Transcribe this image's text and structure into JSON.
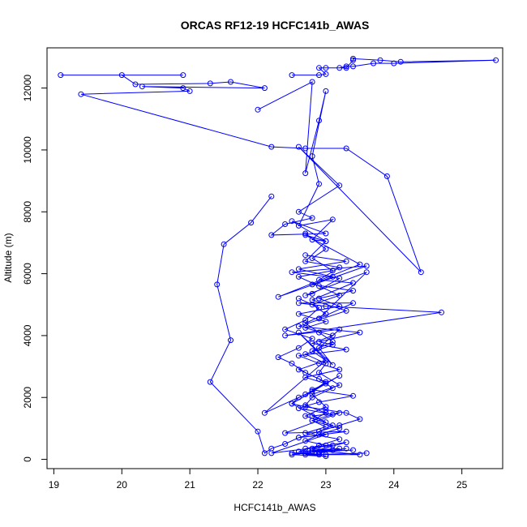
{
  "chart_data": {
    "type": "line",
    "title": "ORCAS RF12-19 HCFC141b_AWAS",
    "xlabel": "HCFC141b_AWAS",
    "ylabel": "Altitude (m)",
    "xlim": [
      18.9,
      25.6
    ],
    "ylim": [
      -300,
      13300
    ],
    "x_ticks": [
      19,
      20,
      21,
      22,
      23,
      24,
      25
    ],
    "y_ticks": [
      0,
      2000,
      4000,
      6000,
      8000,
      10000,
      12000
    ],
    "grid": false,
    "legend": "none",
    "color": "#0000ff",
    "marker": "open-circle",
    "series": [
      {
        "x": [
          19.1,
          20.9,
          20.0,
          20.2,
          21.3,
          21.6,
          22.1,
          20.3,
          20.9,
          21.0,
          19.4,
          22.2,
          22.7,
          23.3,
          23.9,
          24.4,
          22.6,
          23.2,
          22.6,
          22.8,
          22.4,
          22.2,
          23.0,
          22.5,
          23.0,
          22.7,
          23.5,
          22.3,
          23.6,
          22.5,
          23.2,
          22.8,
          22.7,
          23.6,
          22.9,
          23.4,
          22.6,
          23.0,
          24.7,
          22.4,
          23.2,
          22.9,
          23.1,
          22.6,
          23.0,
          22.1,
          22.7,
          23.2,
          22.5,
          23.0,
          22.8,
          23.2,
          22.4,
          23.3,
          22.6,
          23.0,
          22.2,
          23.1,
          22.7,
          23.3,
          22.8,
          23.4,
          22.5,
          22.9,
          23.5,
          22.8,
          23.2,
          22.6,
          23.1,
          22.9,
          23.3,
          22.5,
          23.0,
          22.7,
          23.6
        ],
        "y": [
          12420,
          12420,
          12420,
          12120,
          12150,
          12200,
          12000,
          12050,
          12000,
          11900,
          11800,
          10100,
          10050,
          10050,
          9150,
          6050,
          10100,
          8850,
          8000,
          7800,
          7600,
          7250,
          7300,
          7700,
          7050,
          7250,
          6300,
          5250,
          6250,
          6050,
          5850,
          5350,
          5300,
          6050,
          4550,
          5050,
          5050,
          4950,
          4750,
          4000,
          4200,
          3600,
          3050,
          4100,
          3200,
          1500,
          2100,
          2700,
          1800,
          1200,
          1400,
          1500,
          850,
          900,
          700,
          800,
          200,
          450,
          350,
          550,
          250,
          300,
          200,
          150,
          150,
          300,
          350,
          250,
          300,
          200,
          350,
          150,
          100,
          150,
          200
        ]
      },
      {
        "x": [
          22.5,
          22.9,
          23.0,
          22.9,
          23.3,
          23.4,
          23.4,
          23.8,
          24.1,
          25.5,
          24.0,
          23.7,
          23.4,
          23.3,
          23.2,
          23.0
        ],
        "y": [
          12420,
          12420,
          12450,
          12650,
          12650,
          12900,
          12950,
          12900,
          12850,
          12900,
          12800,
          12800,
          12700,
          12700,
          12650,
          12650
        ]
      },
      {
        "x": [
          22.0,
          22.8,
          22.7,
          22.9,
          23.0,
          22.8,
          22.9,
          22.6,
          23.1,
          22.8,
          23.0,
          22.7,
          23.2,
          22.9,
          23.4,
          22.8,
          23.3,
          22.6,
          23.5,
          22.9,
          23.1,
          22.7,
          23.0,
          22.9,
          23.2,
          22.8,
          23.0,
          22.7,
          23.1,
          22.9
        ],
        "y": [
          11300,
          12200,
          9250,
          10950,
          11900,
          9800,
          8900,
          7550,
          7750,
          7100,
          7050,
          6400,
          6200,
          5800,
          5700,
          5150,
          4800,
          4300,
          4100,
          3800,
          3700,
          3400,
          3100,
          2800,
          2400,
          2100,
          1700,
          1400,
          1100,
          900
        ]
      },
      {
        "x": [
          22.2,
          21.9,
          21.5,
          21.4,
          21.6,
          21.3,
          22.0,
          22.1,
          22.2,
          22.4,
          22.6,
          22.9,
          23.2,
          23.5,
          23.3,
          23.0,
          22.7,
          22.5,
          22.6,
          22.8,
          23.0,
          22.7,
          22.5,
          22.3,
          22.6,
          22.8,
          22.4,
          22.7,
          22.9,
          22.6
        ],
        "y": [
          8500,
          7650,
          6950,
          5650,
          3850,
          2500,
          900,
          200,
          350,
          500,
          700,
          900,
          1100,
          1300,
          1500,
          1600,
          1700,
          1800,
          2000,
          2200,
          2500,
          2800,
          3100,
          3300,
          3600,
          3900,
          4200,
          4500,
          4900,
          5200
        ]
      },
      {
        "x": [
          22.7,
          23.0,
          22.8,
          23.1,
          22.6,
          22.9,
          23.2,
          22.8,
          23.0,
          22.7,
          22.9,
          23.1,
          22.8,
          23.0,
          22.6,
          22.9,
          23.1,
          22.8,
          22.7,
          23.0,
          22.8,
          23.2,
          22.9,
          22.7,
          23.0,
          22.8,
          23.1,
          22.9,
          22.7,
          23.0
        ],
        "y": [
          7300,
          6800,
          6500,
          6100,
          5900,
          5600,
          5300,
          5000,
          4700,
          4400,
          4100,
          3800,
          3500,
          3200,
          2900,
          2600,
          2300,
          2000,
          1750,
          1500,
          1250,
          1000,
          800,
          600,
          450,
          350,
          300,
          250,
          200,
          150
        ]
      },
      {
        "x": [
          22.7,
          23.3,
          22.6,
          23.1,
          22.8,
          23.4,
          22.9,
          23.2,
          22.6,
          23.0,
          22.7,
          23.1,
          22.8,
          23.3,
          22.6,
          22.9,
          23.2,
          22.7,
          23.0,
          22.8,
          23.4,
          22.9,
          22.6,
          23.1,
          22.8,
          23.0,
          22.7,
          23.2,
          22.9,
          22.6
        ],
        "y": [
          6600,
          6400,
          6150,
          5900,
          5650,
          5450,
          5200,
          4950,
          4700,
          4450,
          4250,
          4000,
          3750,
          3550,
          3350,
          3100,
          2900,
          2650,
          2450,
          2250,
          2050,
          1850,
          1650,
          1450,
          1250,
          1050,
          850,
          650,
          450,
          250
        ]
      }
    ]
  }
}
